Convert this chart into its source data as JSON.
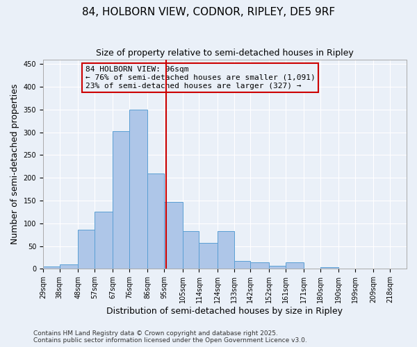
{
  "title": "84, HOLBORN VIEW, CODNOR, RIPLEY, DE5 9RF",
  "subtitle": "Size of property relative to semi-detached houses in Ripley",
  "xlabel": "Distribution of semi-detached houses by size in Ripley",
  "ylabel": "Number of semi-detached properties",
  "bar_color": "#aec6e8",
  "bar_edge_color": "#5a9fd4",
  "background_color": "#eaf0f8",
  "grid_color": "#ffffff",
  "bin_labels": [
    "29sqm",
    "38sqm",
    "48sqm",
    "57sqm",
    "67sqm",
    "76sqm",
    "86sqm",
    "95sqm",
    "105sqm",
    "114sqm",
    "124sqm",
    "133sqm",
    "142sqm",
    "152sqm",
    "161sqm",
    "171sqm",
    "180sqm",
    "190sqm",
    "199sqm",
    "209sqm",
    "218sqm"
  ],
  "bar_heights": [
    5,
    10,
    86,
    126,
    303,
    350,
    209,
    147,
    83,
    57,
    83,
    18,
    15,
    6,
    14,
    0,
    3,
    1,
    1,
    1,
    1
  ],
  "bin_edges": [
    29,
    38,
    48,
    57,
    67,
    76,
    86,
    95,
    105,
    114,
    124,
    133,
    142,
    152,
    161,
    171,
    180,
    190,
    199,
    209,
    218,
    227
  ],
  "property_size": 96,
  "property_line_color": "#cc0000",
  "annotation_text": "84 HOLBORN VIEW: 96sqm\n← 76% of semi-detached houses are smaller (1,091)\n23% of semi-detached houses are larger (327) →",
  "annotation_box_color": "#cc0000",
  "ylim": [
    0,
    460
  ],
  "yticks": [
    0,
    50,
    100,
    150,
    200,
    250,
    300,
    350,
    400,
    450
  ],
  "footer_text": "Contains HM Land Registry data © Crown copyright and database right 2025.\nContains public sector information licensed under the Open Government Licence v3.0.",
  "title_fontsize": 11,
  "subtitle_fontsize": 9,
  "xlabel_fontsize": 9,
  "ylabel_fontsize": 9,
  "tick_fontsize": 7,
  "annotation_fontsize": 8,
  "footer_fontsize": 6.5
}
